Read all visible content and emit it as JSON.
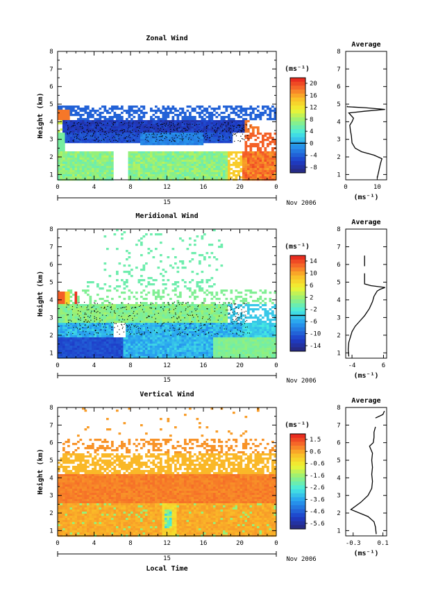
{
  "chart_data": [
    {
      "type": "heatmap",
      "title": "Zonal Wind",
      "ylabel": "Height (km)",
      "xlabel": "",
      "xticks": [
        "0",
        "4",
        "8",
        "12",
        "16",
        "20",
        "0"
      ],
      "yticks": [
        "1",
        "2",
        "3",
        "4",
        "5",
        "6",
        "7",
        "8"
      ],
      "xlim": [
        0,
        24
      ],
      "ylim": [
        0.7,
        8
      ],
      "date_day": "15",
      "date_month": "Nov 2006",
      "colorbar": {
        "label": "(ms⁻¹)",
        "ticks": [
          "20",
          "16",
          "12",
          "8",
          "4",
          "0",
          "-4",
          "-8"
        ],
        "range": [
          -10,
          22
        ]
      },
      "average": {
        "title": "Average",
        "xlabel": "(ms⁻¹)",
        "xticks": [
          "0",
          "10"
        ],
        "xlim": [
          0,
          13
        ],
        "profile": [
          [
            10,
            0.8
          ],
          [
            10.5,
            1.2
          ],
          [
            11,
            1.6
          ],
          [
            11.5,
            1.9
          ],
          [
            9,
            2.1
          ],
          [
            5,
            2.3
          ],
          [
            3,
            2.5
          ],
          [
            2,
            2.8
          ],
          [
            1.8,
            3.2
          ],
          [
            1.5,
            3.5
          ],
          [
            1.3,
            3.8
          ],
          [
            2,
            4.0
          ],
          [
            2.5,
            4.2
          ],
          [
            1,
            4.5
          ],
          [
            6,
            4.6
          ],
          [
            12.5,
            4.7
          ],
          [
            6,
            4.8
          ],
          [
            0.5,
            4.85
          ],
          [
            0.5,
            4.9
          ]
        ]
      }
    },
    {
      "type": "heatmap",
      "title": "Meridional Wind",
      "ylabel": "Height (km)",
      "xlabel": "",
      "xticks": [
        "0",
        "4",
        "8",
        "12",
        "16",
        "20",
        "0"
      ],
      "yticks": [
        "1",
        "2",
        "3",
        "4",
        "5",
        "6",
        "7",
        "8"
      ],
      "xlim": [
        0,
        24
      ],
      "ylim": [
        0.7,
        8
      ],
      "date_day": "15",
      "date_month": "Nov 2006",
      "colorbar": {
        "label": "(ms⁻¹)",
        "ticks": [
          "14",
          "10",
          "6",
          "2",
          "-2",
          "-6",
          "-10",
          "-14"
        ],
        "range": [
          -16,
          17
        ]
      },
      "average": {
        "title": "Average",
        "xlabel": "(ms⁻¹)",
        "xticks": [
          "-4",
          "6"
        ],
        "xlim": [
          -6,
          7
        ],
        "profile": [
          [
            -5,
            0.8
          ],
          [
            -5.2,
            1.2
          ],
          [
            -5,
            1.6
          ],
          [
            -4.5,
            1.9
          ],
          [
            -4,
            2.2
          ],
          [
            -3,
            2.5
          ],
          [
            -1.5,
            2.8
          ],
          [
            0,
            3.1
          ],
          [
            1.5,
            3.5
          ],
          [
            2.5,
            3.9
          ],
          [
            3,
            4.2
          ],
          [
            4,
            4.5
          ],
          [
            5,
            4.6
          ],
          [
            6.5,
            4.7
          ],
          [
            2,
            4.8
          ],
          [
            0,
            4.9
          ],
          [
            0,
            5.5
          ]
        ],
        "segment": [
          [
            0,
            5.9
          ],
          [
            0,
            6.5
          ]
        ]
      }
    },
    {
      "type": "heatmap",
      "title": "Vertical Wind",
      "ylabel": "Height (km)",
      "xlabel": "Local Time",
      "xticks": [
        "0",
        "4",
        "8",
        "12",
        "16",
        "20",
        "0"
      ],
      "yticks": [
        "1",
        "2",
        "3",
        "4",
        "5",
        "6",
        "7",
        "8"
      ],
      "xlim": [
        0,
        24
      ],
      "ylim": [
        0.7,
        8
      ],
      "date_day": "15",
      "date_month": "Nov 2006",
      "colorbar": {
        "label": "(ms⁻¹)",
        "ticks": [
          "1.5",
          "0.6",
          "-0.6",
          "-1.6",
          "-2.6",
          "-3.6",
          "-4.6",
          "-5.6"
        ],
        "range": [
          -6,
          2
        ]
      },
      "average": {
        "title": "Average",
        "xlabel": "(ms⁻¹)",
        "xticks": [
          "-0.3",
          "0.1"
        ],
        "xlim": [
          -0.4,
          0.15
        ],
        "profile": [
          [
            0.01,
            0.8
          ],
          [
            0.0,
            1.2
          ],
          [
            -0.02,
            1.5
          ],
          [
            -0.1,
            1.8
          ],
          [
            -0.33,
            2.2
          ],
          [
            -0.2,
            2.6
          ],
          [
            -0.1,
            3.0
          ],
          [
            -0.05,
            3.4
          ],
          [
            -0.04,
            3.8
          ],
          [
            -0.05,
            4.2
          ],
          [
            -0.04,
            4.6
          ],
          [
            -0.05,
            5.0
          ],
          [
            -0.04,
            5.4
          ],
          [
            -0.08,
            5.8
          ],
          [
            -0.03,
            6.0
          ],
          [
            -0.02,
            6.3
          ],
          [
            -0.02,
            6.6
          ],
          [
            0.0,
            6.9
          ]
        ],
        "segment": [
          [
            0.0,
            7.4
          ],
          [
            0.1,
            7.6
          ],
          [
            0.12,
            7.8
          ]
        ]
      }
    }
  ]
}
